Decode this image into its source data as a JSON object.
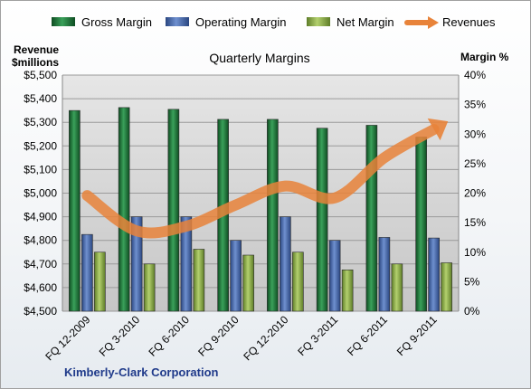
{
  "chart_data": {
    "type": "bar",
    "title": "Quarterly Margins",
    "categories": [
      "FQ 12-2009",
      "FQ 3-2010",
      "FQ 6-2010",
      "FQ 9-2010",
      "FQ 12-2010",
      "FQ 3-2011",
      "FQ 6-2011",
      "FQ 9-2011"
    ],
    "series": [
      {
        "name": "Gross Margin",
        "type": "bar",
        "axis": "right",
        "color": "#1f7a3a",
        "values": [
          34.0,
          34.5,
          34.2,
          32.5,
          32.5,
          31.0,
          31.5,
          29.5
        ]
      },
      {
        "name": "Operating Margin",
        "type": "bar",
        "axis": "right",
        "color": "#4a6fb3",
        "values": [
          13.0,
          16.0,
          16.0,
          12.0,
          16.0,
          12.0,
          12.5,
          12.4
        ]
      },
      {
        "name": "Net Margin",
        "type": "bar",
        "axis": "right",
        "color": "#8bb04a",
        "values": [
          10.0,
          8.0,
          10.5,
          9.5,
          10.0,
          7.0,
          8.0,
          8.2
        ]
      },
      {
        "name": "Revenues",
        "type": "line",
        "axis": "left",
        "color": "#e8833a",
        "values": [
          4990,
          4840,
          4860,
          4950,
          5030,
          4980,
          5150,
          5270
        ]
      }
    ],
    "ylabel_left": "Revenue $millions",
    "ylabel_right": "Margin %",
    "ylim_left": [
      4500,
      5500
    ],
    "ylim_right": [
      0,
      40
    ],
    "yticks_left": [
      "$4,500",
      "$4,600",
      "$4,700",
      "$4,800",
      "$4,900",
      "$5,000",
      "$5,100",
      "$5,200",
      "$5,300",
      "$5,400",
      "$5,500"
    ],
    "yticks_right": [
      "0%",
      "5%",
      "10%",
      "15%",
      "20%",
      "25%",
      "30%",
      "35%",
      "40%"
    ],
    "grid": true,
    "legend_position": "top",
    "footer": "Kimberly-Clark Corporation",
    "colors": {
      "plot_bg_top": "#e4e4e4",
      "plot_bg_bottom": "#c9c9c9"
    }
  }
}
